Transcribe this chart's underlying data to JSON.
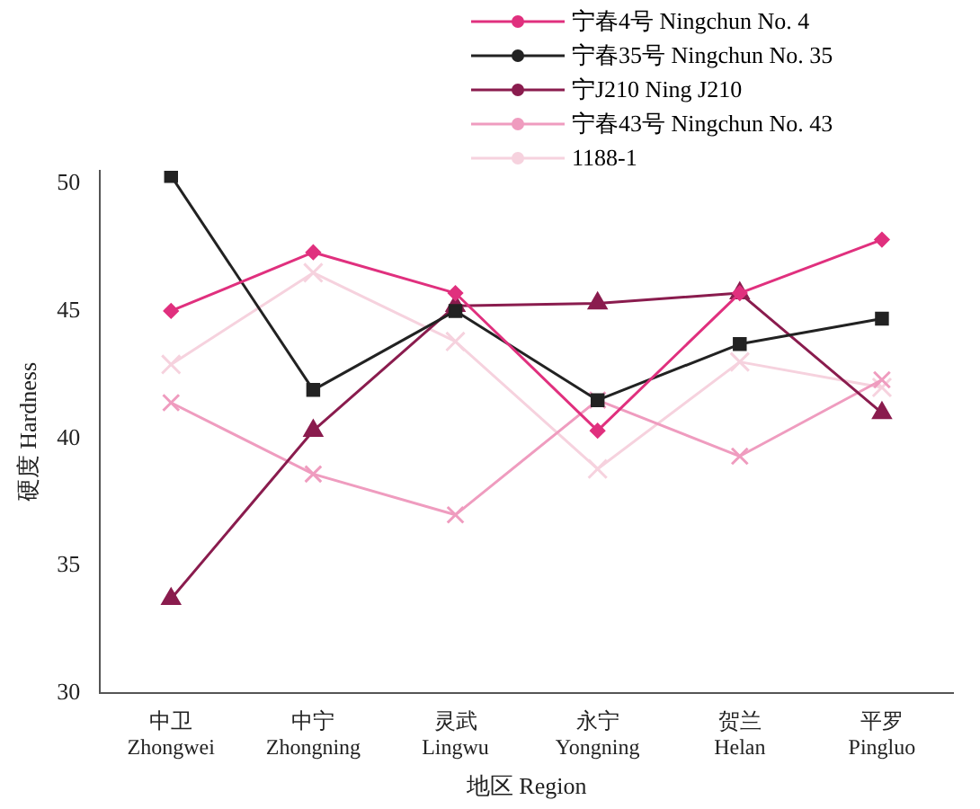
{
  "chart_data": {
    "type": "line",
    "xlabel": "地区 Region",
    "ylabel": "硬度 Hardness",
    "categories": [
      "中卫 Zhongwei",
      "中宁 Zhongning",
      "灵武 Lingwu",
      "永宁 Yongning",
      "贺兰 Helan",
      "平罗 Pingluo"
    ],
    "series": [
      {
        "name": "宁春4号 Ningchun No. 4",
        "color": "#e0307e",
        "marker": "diamond",
        "values": [
          45.0,
          47.3,
          45.7,
          40.3,
          45.7,
          47.8
        ]
      },
      {
        "name": "宁春35号 Ningchun No. 35",
        "color": "#222222",
        "marker": "square",
        "values": [
          50.3,
          41.9,
          45.0,
          41.5,
          43.7,
          44.7
        ]
      },
      {
        "name": "宁J210 Ning J210",
        "color": "#8a1c4e",
        "marker": "triangle",
        "values": [
          33.7,
          40.3,
          45.2,
          45.3,
          45.7,
          41.0
        ]
      },
      {
        "name": "宁春43号 Ningchun No. 43",
        "color": "#ef9cbf",
        "marker": "cross",
        "values": [
          41.4,
          38.6,
          37.0,
          41.5,
          39.3,
          42.3
        ]
      },
      {
        "name": "1188-1",
        "color": "#f6d2de",
        "marker": "cross",
        "values": [
          42.9,
          46.5,
          43.8,
          38.8,
          43.0,
          42.0
        ]
      }
    ],
    "ylim": [
      30,
      50.5
    ],
    "yticks": [
      30,
      35,
      40,
      45,
      50
    ],
    "grid": false,
    "legend": "top right"
  }
}
